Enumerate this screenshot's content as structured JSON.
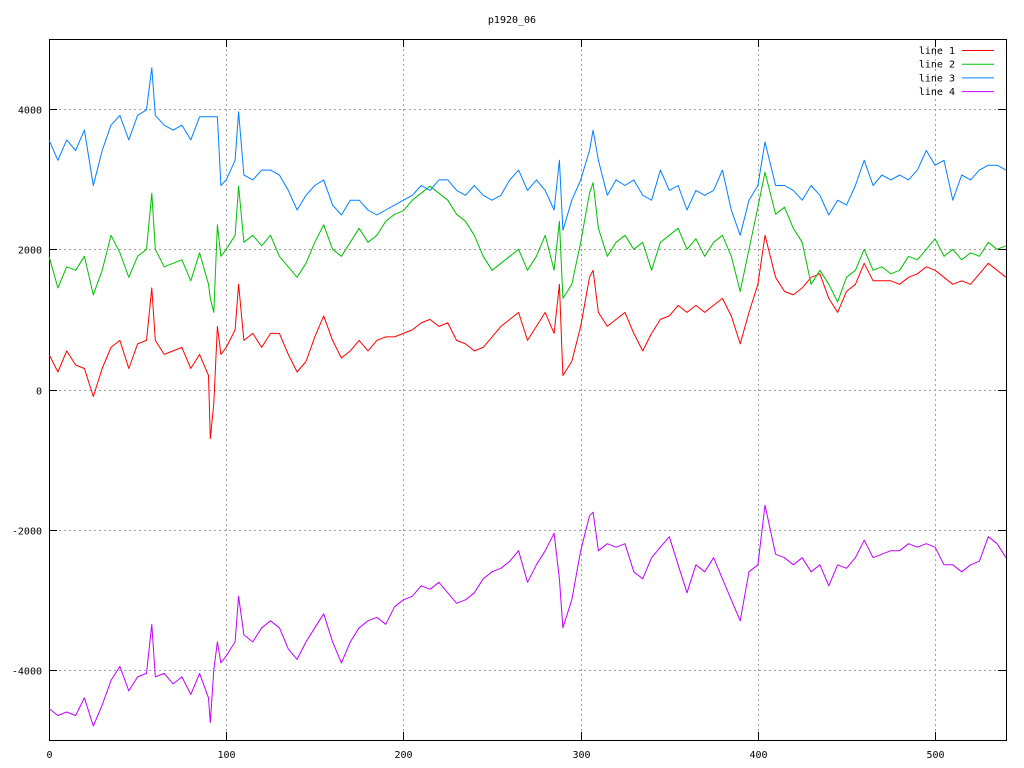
{
  "chart_data": {
    "type": "line",
    "title": "p1920_06",
    "xlabel": "",
    "ylabel": "",
    "xlim": [
      0,
      540
    ],
    "ylim": [
      -5000,
      5000
    ],
    "xticks": [
      0,
      100,
      200,
      300,
      400,
      500
    ],
    "yticks": [
      -4000,
      -2000,
      0,
      2000,
      4000
    ],
    "xtick_labels": [
      "0",
      "100",
      "200",
      "300",
      "400",
      "500"
    ],
    "ytick_labels": [
      "-4000",
      "-2000",
      "0",
      "2000",
      "4000"
    ],
    "grid": true,
    "legend_position": "top-right",
    "x": [
      0,
      5,
      10,
      15,
      20,
      25,
      30,
      35,
      40,
      45,
      50,
      55,
      58,
      60,
      65,
      70,
      75,
      80,
      85,
      90,
      91,
      93,
      95,
      97,
      100,
      105,
      107,
      110,
      115,
      120,
      125,
      130,
      135,
      140,
      145,
      150,
      155,
      160,
      165,
      170,
      175,
      180,
      185,
      190,
      195,
      200,
      205,
      210,
      215,
      220,
      225,
      230,
      235,
      240,
      245,
      250,
      255,
      260,
      265,
      270,
      275,
      280,
      285,
      288,
      290,
      295,
      300,
      305,
      307,
      310,
      315,
      320,
      325,
      330,
      335,
      340,
      345,
      350,
      355,
      360,
      365,
      370,
      375,
      380,
      385,
      390,
      395,
      400,
      404,
      410,
      415,
      420,
      425,
      430,
      435,
      440,
      445,
      450,
      455,
      460,
      465,
      470,
      475,
      480,
      485,
      490,
      495,
      500,
      505,
      510,
      515,
      520,
      525,
      530,
      535,
      540
    ],
    "series": [
      {
        "name": "line 1",
        "color": "#ff0000",
        "values": [
          500,
          250,
          550,
          350,
          300,
          -100,
          300,
          600,
          700,
          300,
          650,
          700,
          1450,
          700,
          500,
          550,
          600,
          300,
          500,
          200,
          -700,
          -200,
          900,
          500,
          600,
          850,
          1500,
          700,
          800,
          600,
          800,
          800,
          500,
          250,
          400,
          750,
          1050,
          700,
          450,
          550,
          700,
          550,
          700,
          750,
          750,
          800,
          850,
          950,
          1000,
          900,
          950,
          700,
          650,
          550,
          600,
          750,
          900,
          1000,
          1100,
          700,
          900,
          1100,
          800,
          1500,
          200,
          400,
          900,
          1600,
          1700,
          1100,
          900,
          1000,
          1100,
          800,
          550,
          800,
          1000,
          1050,
          1200,
          1100,
          1200,
          1100,
          1200,
          1300,
          1050,
          650,
          1100,
          1500,
          2200,
          1600,
          1400,
          1350,
          1450,
          1600,
          1650,
          1300,
          1100,
          1400,
          1500,
          1800,
          1550,
          1550,
          1550,
          1500,
          1600,
          1650,
          1750,
          1700,
          1600,
          1500,
          1550,
          1500,
          1650,
          1800,
          1700,
          1600
        ]
      },
      {
        "name": "line 2",
        "color": "#00c000",
        "values": [
          1900,
          1450,
          1750,
          1700,
          1900,
          1350,
          1700,
          2200,
          1950,
          1600,
          1900,
          2000,
          2800,
          2000,
          1750,
          1800,
          1850,
          1550,
          1950,
          1500,
          1300,
          1100,
          2350,
          1900,
          2000,
          2200,
          2900,
          2100,
          2200,
          2050,
          2200,
          1900,
          1750,
          1600,
          1800,
          2100,
          2350,
          2000,
          1900,
          2100,
          2300,
          2100,
          2200,
          2400,
          2500,
          2550,
          2700,
          2800,
          2900,
          2800,
          2700,
          2500,
          2400,
          2200,
          1900,
          1700,
          1800,
          1900,
          2000,
          1700,
          1900,
          2200,
          1700,
          2400,
          1300,
          1500,
          2100,
          2800,
          2950,
          2300,
          1900,
          2100,
          2200,
          2000,
          2100,
          1700,
          2100,
          2200,
          2300,
          2000,
          2150,
          1900,
          2100,
          2200,
          1900,
          1400,
          2000,
          2600,
          3100,
          2500,
          2600,
          2300,
          2100,
          1500,
          1700,
          1500,
          1250,
          1600,
          1700,
          2000,
          1700,
          1750,
          1650,
          1700,
          1900,
          1850,
          2000,
          2150,
          1900,
          2000,
          1850,
          1950,
          1900,
          2100,
          2000,
          2050
        ]
      },
      {
        "name": "line 3",
        "color": "#0080ff",
        "values": [
          3560,
          3270,
          3560,
          3410,
          3700,
          2910,
          3410,
          3770,
          3910,
          3560,
          3910,
          3990,
          4590,
          3910,
          3770,
          3700,
          3770,
          3560,
          3890,
          3890,
          3890,
          3890,
          3890,
          2910,
          2990,
          3270,
          3960,
          3060,
          2990,
          3130,
          3130,
          3060,
          2840,
          2560,
          2770,
          2910,
          2990,
          2630,
          2490,
          2700,
          2700,
          2560,
          2490,
          2560,
          2630,
          2700,
          2770,
          2910,
          2840,
          2990,
          2990,
          2840,
          2770,
          2910,
          2770,
          2700,
          2770,
          2990,
          3130,
          2840,
          2990,
          2840,
          2560,
          3270,
          2270,
          2700,
          2990,
          3410,
          3700,
          3270,
          2770,
          2990,
          2910,
          2990,
          2770,
          2700,
          3130,
          2840,
          2910,
          2560,
          2840,
          2770,
          2840,
          3130,
          2560,
          2200,
          2700,
          2910,
          3530,
          2910,
          2910,
          2840,
          2700,
          2910,
          2770,
          2490,
          2700,
          2630,
          2910,
          3270,
          2910,
          3060,
          2990,
          3060,
          2990,
          3130,
          3410,
          3200,
          3270,
          2700,
          3060,
          2990,
          3130,
          3200,
          3200,
          3130
        ]
      },
      {
        "name": "line 4",
        "color": "#c000ff",
        "values": [
          -4550,
          -4650,
          -4600,
          -4650,
          -4400,
          -4800,
          -4500,
          -4150,
          -3950,
          -4300,
          -4100,
          -4050,
          -3350,
          -4100,
          -4050,
          -4200,
          -4100,
          -4350,
          -4050,
          -4400,
          -4750,
          -4000,
          -3600,
          -3900,
          -3800,
          -3600,
          -2950,
          -3500,
          -3600,
          -3400,
          -3300,
          -3400,
          -3700,
          -3850,
          -3600,
          -3400,
          -3200,
          -3600,
          -3900,
          -3600,
          -3400,
          -3300,
          -3250,
          -3350,
          -3100,
          -3000,
          -2950,
          -2800,
          -2850,
          -2750,
          -2900,
          -3050,
          -3000,
          -2900,
          -2700,
          -2600,
          -2550,
          -2450,
          -2300,
          -2750,
          -2500,
          -2300,
          -2050,
          -2700,
          -3400,
          -3000,
          -2300,
          -1800,
          -1750,
          -2300,
          -2200,
          -2250,
          -2200,
          -2600,
          -2700,
          -2400,
          -2250,
          -2100,
          -2500,
          -2900,
          -2500,
          -2600,
          -2400,
          -2700,
          -3000,
          -3300,
          -2600,
          -2500,
          -1650,
          -2350,
          -2400,
          -2500,
          -2400,
          -2600,
          -2500,
          -2800,
          -2500,
          -2550,
          -2400,
          -2150,
          -2400,
          -2350,
          -2300,
          -2300,
          -2200,
          -2250,
          -2200,
          -2250,
          -2500,
          -2500,
          -2600,
          -2500,
          -2450,
          -2100,
          -2200,
          -2400
        ]
      }
    ]
  }
}
